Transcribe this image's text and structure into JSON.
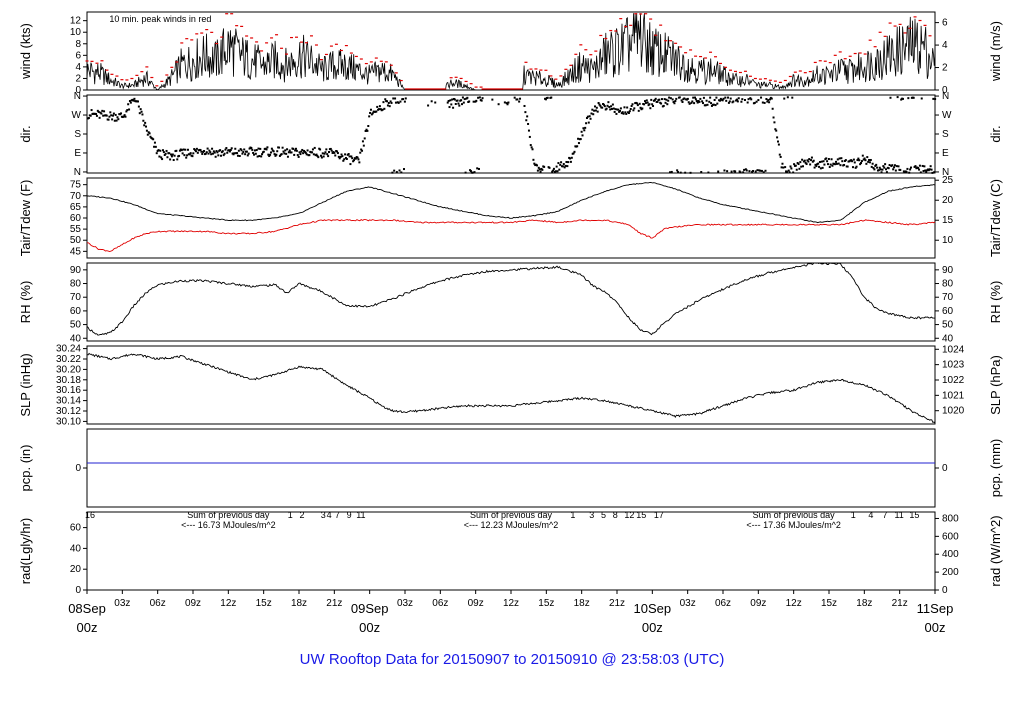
{
  "title": "UW Rooftop Data for 20150907  to  20150910 @ 23:58:03  (UTC)",
  "colors": {
    "wind": "#000000",
    "peak": "#e00000",
    "tair": "#000000",
    "tdew": "#e00000",
    "pcp": "#2020d0",
    "annot": "#9000c0",
    "day_label": "#e00000"
  },
  "time_axis": {
    "hour_labels": [
      "03z",
      "06z",
      "09z",
      "12z",
      "15z",
      "18z",
      "21z"
    ],
    "day_labels": [
      {
        "hours": 0,
        "date": "08Sep",
        "hour": "00z"
      },
      {
        "hours": 24,
        "date": "09Sep",
        "hour": "00z"
      },
      {
        "hours": 48,
        "date": "10Sep",
        "hour": "00z"
      },
      {
        "hours": 72,
        "date": "11Sep",
        "hour": "00z"
      }
    ]
  },
  "panels": {
    "wind": {
      "left_label": "wind (kts)",
      "right_label": "wind (m/s)",
      "left_ticks": [
        "0",
        "2",
        "4",
        "6",
        "8",
        "10",
        "12"
      ],
      "right_ticks": [
        "0",
        "2",
        "4",
        "6"
      ],
      "note": "10 min. peak winds in red"
    },
    "dir": {
      "left_label": "dir.",
      "right_label": "dir.",
      "ticks": [
        "N",
        "E",
        "S",
        "W",
        "N"
      ]
    },
    "temp": {
      "left_label": "Tair/Tdew (F)",
      "right_label": "Tair/Tdew (C)",
      "left_ticks": [
        "45",
        "50",
        "55",
        "60",
        "65",
        "70",
        "75"
      ],
      "right_ticks": [
        "10",
        "15",
        "20",
        "25"
      ]
    },
    "rh": {
      "left_label": "RH (%)",
      "right_label": "RH (%)",
      "ticks": [
        "40",
        "50",
        "60",
        "70",
        "80",
        "90"
      ]
    },
    "slp": {
      "left_label": "SLP (inHg)",
      "right_label": "SLP (hPa)",
      "left_ticks": [
        "30.10",
        "30.12",
        "30.14",
        "30.16",
        "30.18",
        "30.20",
        "30.22",
        "30.24"
      ],
      "right_ticks": [
        "1020",
        "1021",
        "1022",
        "1023",
        "1024"
      ]
    },
    "pcp": {
      "left_label": "pcp. (in)",
      "right_label": "pcp. (mm)",
      "left_ticks": [
        "0"
      ],
      "right_ticks": [
        "0"
      ]
    },
    "rad": {
      "left_label": "rad(Lgly/hr)",
      "right_label": "rad (W/m^2)",
      "left_ticks": [
        "0",
        "20",
        "40",
        "60"
      ],
      "right_ticks": [
        "0",
        "200",
        "400",
        "600",
        "800"
      ]
    }
  },
  "rad_annotations": [
    {
      "hours": 12,
      "line1": "Sum of previous day",
      "line2": "<--- 16.73 MJoules/m^2"
    },
    {
      "hours": 36,
      "line1": "Sum of previous day",
      "line2": "<--- 12.23 MJoules/m^2"
    },
    {
      "hours": 60,
      "line1": "Sum of previous day",
      "line2": "<--- 17.36 MJoules/m^2"
    }
  ],
  "rad_hour_marks": [
    {
      "hours": 0,
      "text": "16"
    },
    {
      "hours": 17,
      "text": "1"
    },
    {
      "hours": 18,
      "text": "2"
    },
    {
      "hours": 19.8,
      "text": "3"
    },
    {
      "hours": 20.3,
      "text": "4"
    },
    {
      "hours": 21,
      "text": "7"
    },
    {
      "hours": 22,
      "text": "9"
    },
    {
      "hours": 23,
      "text": "11"
    },
    {
      "hours": 41,
      "text": "1"
    },
    {
      "hours": 42.6,
      "text": "3"
    },
    {
      "hours": 43.6,
      "text": "5"
    },
    {
      "hours": 44.6,
      "text": "8"
    },
    {
      "hours": 45.8,
      "text": "12"
    },
    {
      "hours": 46.8,
      "text": "15"
    },
    {
      "hours": 48.3,
      "text": "17"
    },
    {
      "hours": 64.8,
      "text": "1"
    },
    {
      "hours": 66.3,
      "text": "4"
    },
    {
      "hours": 67.5,
      "text": "7"
    },
    {
      "hours": 68.7,
      "text": "11"
    },
    {
      "hours": 70,
      "text": "15"
    }
  ],
  "chart_data": [
    {
      "type": "line",
      "name": "wind",
      "ylabel": "wind (kts)",
      "ylim": [
        0,
        13.5
      ],
      "x_hours": [
        0,
        1,
        2,
        3,
        4,
        5,
        6,
        7,
        8,
        9,
        10,
        11,
        12,
        13,
        14,
        15,
        16,
        17,
        18,
        19,
        20,
        21,
        22,
        23,
        24,
        25,
        26,
        27,
        28,
        29,
        30,
        31,
        32,
        33,
        34,
        35,
        36,
        37,
        38,
        39,
        40,
        41,
        42,
        43,
        44,
        45,
        46,
        47,
        48,
        49,
        50,
        51,
        52,
        53,
        54,
        55,
        56,
        57,
        58,
        59,
        60,
        61,
        62,
        63,
        64,
        65,
        66,
        67,
        68,
        69,
        70,
        71,
        72
      ],
      "y": [
        4,
        3.5,
        2,
        0.8,
        1,
        2.5,
        0,
        2,
        5,
        6,
        7,
        6,
        9,
        7,
        6,
        5,
        6,
        5,
        7,
        6,
        4,
        5,
        5,
        4,
        3,
        4,
        3,
        0,
        0,
        0,
        0,
        1.5,
        1,
        0,
        0,
        0,
        0,
        3,
        2.5,
        2,
        1,
        3,
        5,
        4,
        7,
        8,
        9,
        11,
        8,
        7,
        6,
        5,
        4,
        4,
        3,
        2,
        2,
        1,
        1,
        0.5,
        2,
        2,
        3,
        3,
        4,
        4,
        5,
        6,
        7,
        8,
        9,
        9,
        5
      ],
      "peak_scale": 1.3
    },
    {
      "type": "scatter",
      "name": "wind direction",
      "ylabel": "dir.",
      "x_hours": [
        0,
        1,
        2,
        3,
        4,
        5,
        6,
        7,
        8,
        9,
        10,
        11,
        12,
        13,
        14,
        15,
        16,
        17,
        18,
        19,
        20,
        21,
        22,
        23,
        24,
        25,
        26,
        27,
        28,
        29,
        30,
        31,
        32,
        33,
        34,
        35,
        36,
        37,
        38,
        39,
        40,
        41,
        42,
        43,
        44,
        45,
        46,
        47,
        48,
        49,
        50,
        51,
        52,
        53,
        54,
        55,
        56,
        57,
        58,
        59,
        60,
        61,
        62,
        63,
        64,
        65,
        66,
        67,
        68,
        69,
        70,
        71,
        72
      ],
      "y_deg": [
        280,
        275,
        270,
        268,
        360,
        200,
        90,
        80,
        90,
        100,
        110,
        95,
        100,
        95,
        100,
        100,
        100,
        95,
        95,
        100,
        95,
        90,
        70,
        50,
        280,
        320,
        350,
        360,
        350,
        340,
        320,
        330,
        350,
        360,
        355,
        340,
        350,
        340,
        20,
        5,
        30,
        60,
        200,
        310,
        320,
        290,
        300,
        320,
        330,
        340,
        350,
        350,
        345,
        340,
        350,
        355,
        355,
        350,
        350,
        10,
        20,
        60,
        40,
        50,
        50,
        40,
        70,
        20,
        20,
        10,
        10,
        15,
        5
      ]
    },
    {
      "type": "line",
      "name": "Tair",
      "ylabel": "Tair/Tdew (F)",
      "ylim": [
        42,
        78
      ],
      "x_hours": [
        0,
        2,
        4,
        6,
        8,
        10,
        12,
        14,
        16,
        18,
        20,
        22,
        24,
        26,
        28,
        30,
        32,
        34,
        36,
        38,
        40,
        42,
        44,
        46,
        48,
        50,
        52,
        54,
        56,
        58,
        60,
        62,
        64,
        66,
        68,
        70,
        72
      ],
      "y": [
        70,
        69,
        66,
        62,
        61,
        60,
        59,
        59,
        60,
        62,
        67,
        72,
        74,
        71,
        68,
        65,
        63,
        61,
        60,
        61,
        63,
        68,
        72,
        75,
        76,
        73,
        69,
        66,
        64,
        62,
        60,
        58,
        59,
        67,
        72,
        74,
        75
      ]
    },
    {
      "type": "line",
      "name": "Tdew",
      "ylabel": "Tair/Tdew (F)",
      "ylim": [
        42,
        78
      ],
      "x_hours": [
        0,
        1,
        2,
        3,
        4,
        5,
        6,
        8,
        10,
        12,
        14,
        16,
        18,
        20,
        22,
        24,
        26,
        28,
        30,
        32,
        34,
        36,
        38,
        40,
        42,
        44,
        46,
        47,
        48,
        49,
        50,
        52,
        54,
        56,
        58,
        60,
        62,
        64,
        66,
        68,
        70,
        72
      ],
      "y": [
        49,
        46,
        45,
        48,
        51,
        53,
        54,
        54,
        54,
        53,
        53,
        54,
        57,
        59,
        59,
        59,
        59,
        58,
        58,
        58,
        58,
        58,
        59,
        58,
        59,
        59,
        57,
        53,
        51,
        55,
        56,
        57,
        57,
        57,
        57,
        57,
        57,
        57,
        59,
        58,
        57,
        58
      ]
    },
    {
      "type": "line",
      "name": "RH",
      "ylabel": "RH (%)",
      "ylim": [
        38,
        95
      ],
      "x_hours": [
        0,
        1,
        2,
        3,
        4,
        5,
        6,
        8,
        10,
        12,
        14,
        16,
        17,
        18,
        20,
        22,
        24,
        26,
        28,
        30,
        32,
        34,
        36,
        38,
        40,
        42,
        43,
        44,
        45,
        46,
        47,
        48,
        49,
        50,
        52,
        54,
        56,
        58,
        60,
        62,
        64,
        65,
        66,
        67,
        68,
        70,
        72
      ],
      "y": [
        48,
        42,
        44,
        52,
        64,
        73,
        79,
        82,
        82,
        80,
        78,
        79,
        73,
        80,
        74,
        64,
        63,
        69,
        76,
        82,
        86,
        89,
        90,
        91,
        92,
        86,
        78,
        74,
        66,
        55,
        46,
        43,
        51,
        58,
        68,
        76,
        83,
        88,
        92,
        95,
        94,
        84,
        70,
        62,
        58,
        55,
        55
      ]
    },
    {
      "type": "line",
      "name": "SLP",
      "ylabel": "SLP (inHg)",
      "ylim": [
        30.095,
        30.245
      ],
      "x_hours": [
        0,
        2,
        4,
        6,
        8,
        10,
        12,
        14,
        16,
        18,
        20,
        22,
        24,
        25,
        26,
        27,
        28,
        30,
        32,
        34,
        36,
        38,
        40,
        42,
        44,
        46,
        48,
        49,
        50,
        52,
        54,
        56,
        58,
        60,
        62,
        64,
        66,
        68,
        70,
        72
      ],
      "y": [
        30.23,
        30.22,
        30.23,
        30.22,
        30.225,
        30.21,
        30.195,
        30.18,
        30.19,
        30.205,
        30.2,
        30.17,
        30.145,
        30.13,
        30.12,
        30.118,
        30.12,
        30.125,
        30.13,
        30.13,
        30.13,
        30.135,
        30.14,
        30.145,
        30.14,
        30.13,
        30.12,
        30.115,
        30.11,
        30.115,
        30.13,
        30.145,
        30.155,
        30.16,
        30.175,
        30.18,
        30.17,
        30.15,
        30.12,
        30.098
      ]
    },
    {
      "type": "line",
      "name": "precipitation",
      "ylabel": "pcp. (in)",
      "ylim": [
        -0.05,
        0.05
      ],
      "x_hours": [
        0,
        72
      ],
      "y": [
        0,
        0
      ]
    },
    {
      "type": "area",
      "name": "solar radiation",
      "ylabel": "rad(Lgly/hr)",
      "ylim": [
        0,
        75
      ],
      "x_hours": [
        0,
        1,
        2,
        13,
        15,
        17,
        19,
        20,
        21,
        22,
        23,
        24,
        25,
        37,
        38,
        40,
        41,
        42,
        43,
        44,
        45,
        46,
        47,
        48,
        49,
        50,
        61,
        62,
        64,
        66,
        68,
        69,
        70,
        71,
        72
      ],
      "y": [
        20,
        19,
        2,
        0,
        6,
        18,
        38,
        65,
        70,
        55,
        35,
        10,
        0,
        0,
        5,
        22,
        45,
        57,
        48,
        72,
        65,
        60,
        48,
        30,
        12,
        0,
        0,
        10,
        38,
        58,
        63,
        62,
        55,
        42,
        25
      ]
    }
  ]
}
